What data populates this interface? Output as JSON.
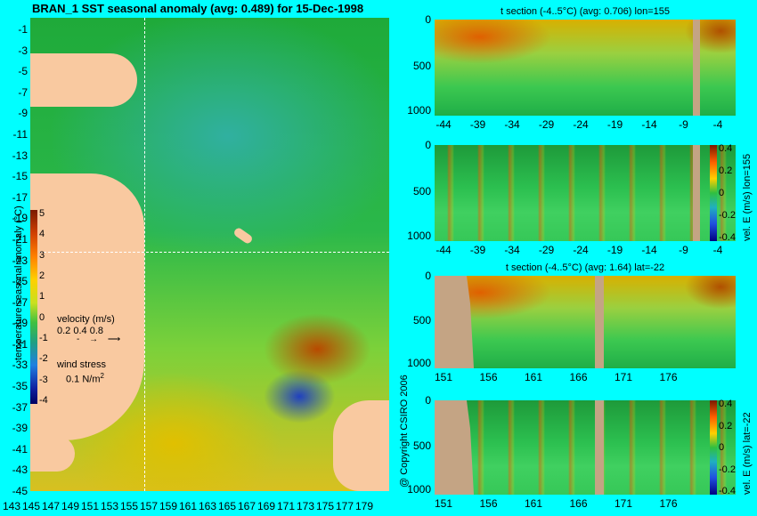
{
  "main_title": "BRAN_1 SST seasonal anomaly (avg: 0.489) for 15-Dec-1998",
  "copyright": "@ Copyright CSIRO 2006",
  "map": {
    "lat_ticks": [
      "-1",
      "-3",
      "-5",
      "-7",
      "-9",
      "-11",
      "-13",
      "-15",
      "-17",
      "-19",
      "-21",
      "-23",
      "-25",
      "-27",
      "-29",
      "-31",
      "-33",
      "-35",
      "-37",
      "-39",
      "-41",
      "-43",
      "-45"
    ],
    "lon_ticks": [
      "143",
      "145",
      "147",
      "149",
      "151",
      "153",
      "155",
      "157",
      "159",
      "161",
      "163",
      "165",
      "167",
      "169",
      "171",
      "173",
      "175",
      "177",
      "179"
    ],
    "colorbar": {
      "label": "temperature seasonal anomaly (°C)",
      "ticks": [
        "5",
        "4",
        "3",
        "2",
        "1",
        "0",
        "-1",
        "-2",
        "-3",
        "-4"
      ],
      "range": [
        -4,
        5
      ]
    },
    "velocity_legend": {
      "title": "velocity (m/s)",
      "values": "0.2 0.4 0.8"
    },
    "wind_legend": {
      "title": "wind stress",
      "value": "0.1 N/m",
      "exponent": "2"
    },
    "crosshair": {
      "lon": 155,
      "lat": -22
    }
  },
  "panels": [
    {
      "id": "t-section-lon",
      "title": "t section (-4..5°C) (avg: 0.706) lon=155",
      "y_ticks": [
        "0",
        "500",
        "1000"
      ],
      "x_ticks": [
        "-44",
        "-39",
        "-34",
        "-29",
        "-24",
        "-19",
        "-14",
        "-9",
        "-4"
      ],
      "colorbar_label": "",
      "colorbar_ticks": []
    },
    {
      "id": "vel-e-lon",
      "title": "",
      "y_ticks": [
        "0",
        "500",
        "1000"
      ],
      "x_ticks": [
        "-44",
        "-39",
        "-34",
        "-29",
        "-24",
        "-19",
        "-14",
        "-9",
        "-4"
      ],
      "colorbar_label": "vel. E (m/s) lon=155",
      "colorbar_ticks": [
        "0.4",
        "0.2",
        "0",
        "-0.2",
        "-0.4"
      ]
    },
    {
      "id": "t-section-lat",
      "title": "t section (-4..5°C) (avg: 1.64) lat=-22",
      "y_ticks": [
        "0",
        "500",
        "1000"
      ],
      "x_ticks": [
        "151",
        "156",
        "161",
        "166",
        "171",
        "176"
      ],
      "colorbar_label": "",
      "colorbar_ticks": []
    },
    {
      "id": "vel-e-lat",
      "title": "",
      "y_ticks": [
        "0",
        "500",
        "1000"
      ],
      "x_ticks": [
        "151",
        "156",
        "161",
        "166",
        "171",
        "176"
      ],
      "colorbar_label": "vel. E (m/s) lat=-22",
      "colorbar_ticks": [
        "0.4",
        "0.2",
        "0",
        "-0.2",
        "-0.4"
      ]
    }
  ],
  "chart_data": [
    {
      "type": "heatmap",
      "title": "BRAN_1 SST seasonal anomaly (avg: 0.489) for 15-Dec-1998",
      "x": [
        143,
        145,
        147,
        149,
        151,
        153,
        155,
        157,
        159,
        161,
        163,
        165,
        167,
        169,
        171,
        173,
        175,
        177,
        179
      ],
      "y": [
        -1,
        -3,
        -5,
        -7,
        -9,
        -11,
        -13,
        -15,
        -17,
        -19,
        -21,
        -23,
        -25,
        -27,
        -29,
        -31,
        -33,
        -35,
        -37,
        -39,
        -41,
        -43,
        -45
      ],
      "colorbar_range": [
        -4,
        5
      ],
      "colorbar_label": "temperature seasonal anomaly (°C)"
    },
    {
      "type": "heatmap",
      "title": "t section (-4..5°C) (avg: 0.706) lon=155",
      "x": [
        -44,
        -39,
        -34,
        -29,
        -24,
        -19,
        -14,
        -9,
        -4
      ],
      "y": [
        0,
        500,
        1000
      ]
    },
    {
      "type": "heatmap",
      "x": [
        -44,
        -39,
        -34,
        -29,
        -24,
        -19,
        -14,
        -9,
        -4
      ],
      "y": [
        0,
        500,
        1000
      ],
      "colorbar_range": [
        -0.4,
        0.4
      ],
      "colorbar_label": "vel. E (m/s) lon=155"
    },
    {
      "type": "heatmap",
      "title": "t section (-4..5°C) (avg: 1.64) lat=-22",
      "x": [
        151,
        156,
        161,
        166,
        171,
        176
      ],
      "y": [
        0,
        500,
        1000
      ]
    },
    {
      "type": "heatmap",
      "x": [
        151,
        156,
        161,
        166,
        171,
        176
      ],
      "y": [
        0,
        500,
        1000
      ],
      "colorbar_range": [
        -0.4,
        0.4
      ],
      "colorbar_label": "vel. E (m/s) lat=-22"
    }
  ]
}
